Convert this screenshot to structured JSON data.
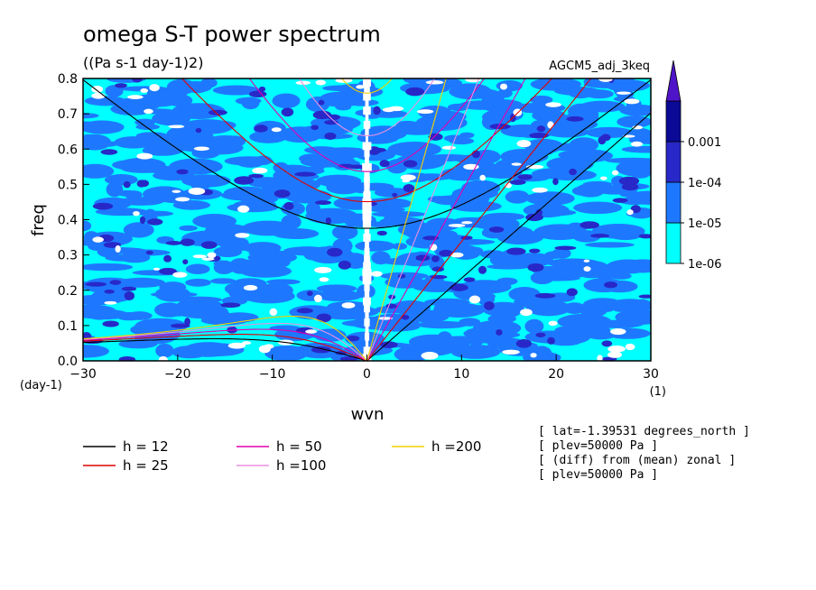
{
  "chart_data": {
    "type": "heatmap",
    "title": "omega S-T power spectrum",
    "subtitle": "((Pa s-1 day-1)2)",
    "dataset_label": "AGCM5_adj_3keq",
    "xlabel": "wvn",
    "ylabel": "freq",
    "x_unit": "(1)",
    "y_unit": "(day-1)",
    "xlim": [
      -30,
      30
    ],
    "ylim": [
      0,
      0.8
    ],
    "x_ticks": [
      -30,
      -20,
      -10,
      0,
      10,
      20,
      30
    ],
    "y_ticks": [
      0,
      0.1,
      0.2,
      0.3,
      0.4,
      0.5,
      0.6,
      0.7,
      0.8
    ],
    "color_levels": [
      {
        "label": "1e-06",
        "color": "#00ffff"
      },
      {
        "label": "1e-05",
        "color": "#1e78ff"
      },
      {
        "label": "1e-04",
        "color": "#2828c8"
      },
      {
        "label": "0.001",
        "color": "#0a0a96"
      },
      {
        "label": "",
        "color": "#5014c8"
      }
    ],
    "colorbar_labels": [
      "1e-06",
      "1e-05",
      "1e-04",
      "0.001"
    ],
    "dispersion_curves": [
      {
        "name": "h = 12",
        "h": 12,
        "color": "#000000"
      },
      {
        "name": "h = 25",
        "h": 25,
        "color": "#e00000"
      },
      {
        "name": "h = 50",
        "h": 50,
        "color": "#e000b0"
      },
      {
        "name": "h =100",
        "h": 100,
        "color": "#e890e0"
      },
      {
        "name": "h =200",
        "h": 200,
        "color": "#f0d000"
      }
    ],
    "annotations": [
      "[ lat=-1.39531 degrees_north ]",
      "[ plev=50000 Pa ]",
      "[ (diff) from (mean) zonal ]",
      "[ plev=50000 Pa ]"
    ]
  }
}
